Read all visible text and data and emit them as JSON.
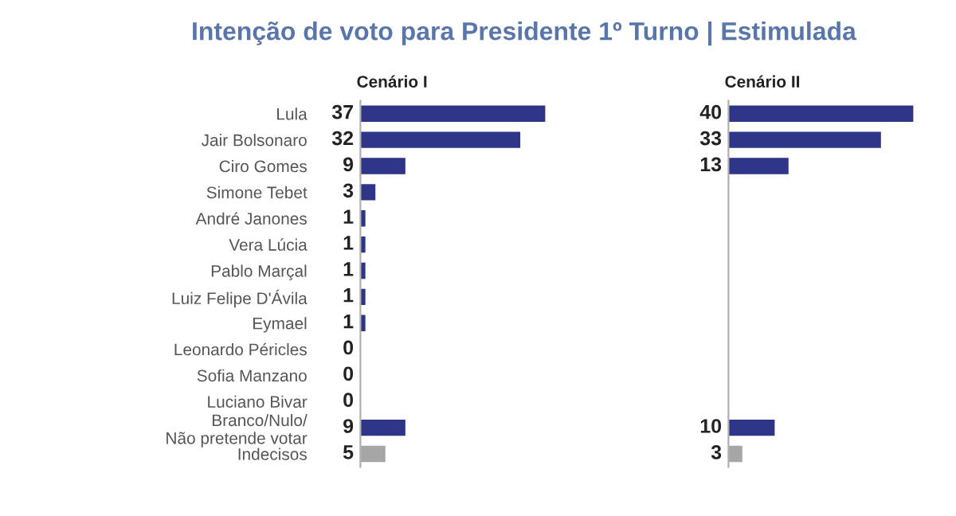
{
  "chart_data": [
    {
      "type": "bar",
      "orientation": "horizontal",
      "title": "Intenção de voto para Presidente 1º Turno | Estimulada",
      "subtitle": "Cenário I",
      "categories": [
        "Lula",
        "Jair Bolsonaro",
        "Ciro Gomes",
        "Simone Tebet",
        "André Janones",
        "Vera Lúcia",
        "Pablo Marçal",
        "Luiz Felipe D'Ávila",
        "Eymael",
        "Leonardo Péricles",
        "Sofia Manzano",
        "Luciano Bivar",
        "Branco/Nulo/\nNão pretende votar",
        "Indecisos"
      ],
      "values": [
        37,
        32,
        9,
        3,
        1,
        1,
        1,
        1,
        1,
        0,
        0,
        0,
        9,
        5
      ],
      "colors": [
        "#2e3586",
        "#2e3586",
        "#2e3586",
        "#2e3586",
        "#2e3586",
        "#2e3586",
        "#2e3586",
        "#2e3586",
        "#2e3586",
        "#2e3586",
        "#2e3586",
        "#2e3586",
        "#2e3586",
        "#a6a6a6"
      ],
      "data_labels": true,
      "tick_labels": "y",
      "grid": false,
      "legend": false
    },
    {
      "type": "bar",
      "orientation": "horizontal",
      "subtitle": "Cenário II",
      "categories": [
        null,
        null,
        null,
        null,
        null,
        null,
        null,
        null,
        null,
        null,
        null,
        null,
        null,
        null
      ],
      "values": [
        40,
        33,
        13,
        null,
        null,
        null,
        null,
        null,
        null,
        null,
        null,
        null,
        10,
        3
      ],
      "colors": [
        "#2e3586",
        "#2e3586",
        "#2e3586",
        "#2e3586",
        "#2e3586",
        "#2e3586",
        "#2e3586",
        "#2e3586",
        "#2e3586",
        "#2e3586",
        "#2e3586",
        "#2e3586",
        "#2e3586",
        "#a6a6a6"
      ],
      "data_labels": true,
      "tick_labels": false,
      "grid": false,
      "legend": false
    }
  ]
}
